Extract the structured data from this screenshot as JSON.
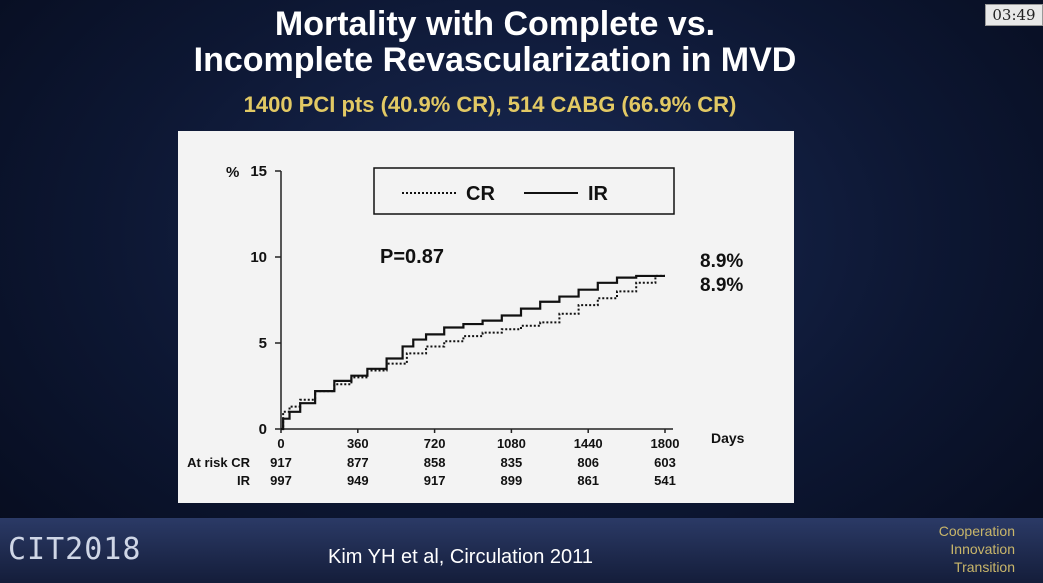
{
  "clock": "03:49",
  "slide": {
    "title_line1": "Mortality with Complete vs.",
    "title_line2": "Incomplete Revascularization in MVD",
    "subtitle": "1400 PCI pts (40.9% CR), 514 CABG (66.9% CR)",
    "citation": "Kim YH et al, Circulation 2011",
    "logo": "CIT2018",
    "motto": [
      "Cooperation",
      "Innovation",
      "Transition"
    ]
  },
  "chart_data": {
    "type": "line",
    "ylabel": "%",
    "xlabel": "Days",
    "xlim": [
      0,
      1800
    ],
    "ylim": [
      0,
      15
    ],
    "x_ticks": [
      0,
      360,
      720,
      1080,
      1440,
      1800
    ],
    "y_ticks": [
      0,
      5,
      10,
      15
    ],
    "legend": {
      "position": "top",
      "entries": [
        {
          "name": "CR",
          "style": "dotted"
        },
        {
          "name": "IR",
          "style": "solid"
        }
      ]
    },
    "annotation": "P=0.87",
    "end_labels": [
      "8.9%",
      "8.9%"
    ],
    "series": [
      {
        "name": "CR",
        "style": "dotted",
        "x": [
          0,
          20,
          60,
          120,
          200,
          300,
          360,
          450,
          540,
          640,
          720,
          810,
          900,
          990,
          1080,
          1170,
          1260,
          1350,
          1440,
          1530,
          1620,
          1710,
          1800
        ],
        "y": [
          0,
          1.0,
          1.3,
          1.7,
          2.2,
          2.6,
          3.0,
          3.4,
          3.8,
          4.4,
          4.8,
          5.1,
          5.4,
          5.6,
          5.8,
          6.0,
          6.2,
          6.7,
          7.2,
          7.6,
          8.0,
          8.5,
          8.9
        ]
      },
      {
        "name": "IR",
        "style": "solid",
        "x": [
          0,
          20,
          60,
          120,
          200,
          300,
          360,
          450,
          540,
          600,
          640,
          720,
          810,
          900,
          990,
          1080,
          1170,
          1260,
          1350,
          1440,
          1530,
          1620,
          1710,
          1800
        ],
        "y": [
          0,
          0.6,
          1.0,
          1.5,
          2.2,
          2.8,
          3.1,
          3.5,
          4.1,
          4.8,
          5.2,
          5.5,
          5.9,
          6.1,
          6.3,
          6.6,
          7.0,
          7.4,
          7.7,
          8.1,
          8.5,
          8.8,
          8.9,
          8.9
        ]
      }
    ],
    "at_risk": {
      "label_cr": "At risk CR",
      "label_ir": "IR",
      "cr": [
        "917",
        "877",
        "858",
        "835",
        "806",
        "603"
      ],
      "ir": [
        "997",
        "949",
        "917",
        "899",
        "861",
        "541"
      ]
    }
  }
}
